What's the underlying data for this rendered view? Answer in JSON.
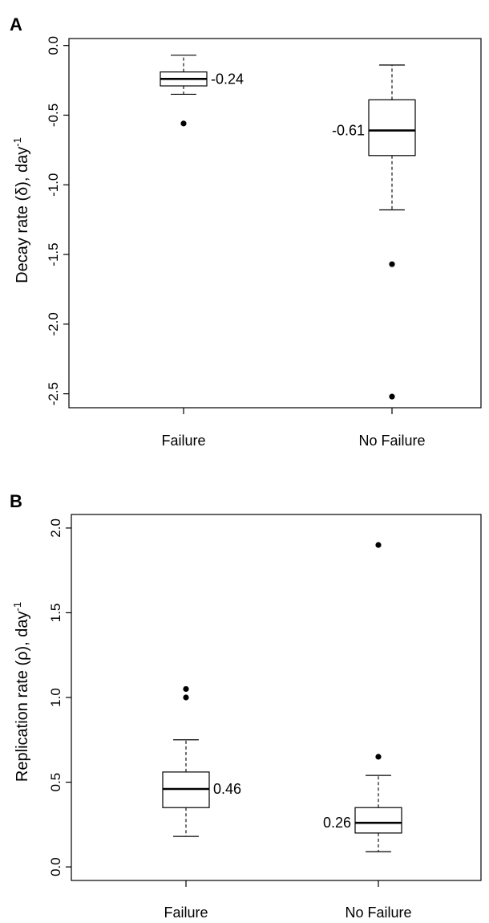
{
  "chart_data": [
    {
      "type": "box",
      "panel_label": "A",
      "ylabel": "Decay rate (δ), day",
      "ylabel_sup": "-1",
      "ylim": [
        -2.6,
        0.05
      ],
      "yticks": [
        0.0,
        -0.5,
        -1.0,
        -1.5,
        -2.0,
        -2.5
      ],
      "ytick_labels": [
        "0.0",
        "-0.5",
        "-1.0",
        "-1.5",
        "-2.0",
        "-2.5"
      ],
      "categories": [
        "Failure",
        "No Failure"
      ],
      "boxes": [
        {
          "category": "Failure",
          "whisker_low": -0.35,
          "q1": -0.29,
          "median": -0.24,
          "q3": -0.19,
          "whisker_high": -0.07,
          "outliers": [
            -0.56
          ],
          "median_label": "-0.24"
        },
        {
          "category": "No Failure",
          "whisker_low": -1.18,
          "q1": -0.79,
          "median": -0.61,
          "q3": -0.39,
          "whisker_high": -0.14,
          "outliers": [
            -1.57,
            -2.52
          ],
          "median_label": "-0.61"
        }
      ]
    },
    {
      "type": "box",
      "panel_label": "B",
      "ylabel": "Replication rate (ρ), day",
      "ylabel_sup": "-1",
      "ylim": [
        -0.08,
        2.08
      ],
      "yticks": [
        0.0,
        0.5,
        1.0,
        1.5,
        2.0
      ],
      "ytick_labels": [
        "0.0",
        "0.5",
        "1.0",
        "1.5",
        "2.0"
      ],
      "categories": [
        "Failure",
        "No Failure"
      ],
      "boxes": [
        {
          "category": "Failure",
          "whisker_low": 0.18,
          "q1": 0.35,
          "median": 0.46,
          "q3": 0.56,
          "whisker_high": 0.75,
          "outliers": [
            1.0,
            1.05
          ],
          "median_label": "0.46"
        },
        {
          "category": "No Failure",
          "whisker_low": 0.09,
          "q1": 0.2,
          "median": 0.26,
          "q3": 0.35,
          "whisker_high": 0.54,
          "outliers": [
            0.65,
            1.9
          ],
          "median_label": "0.26"
        }
      ]
    }
  ]
}
